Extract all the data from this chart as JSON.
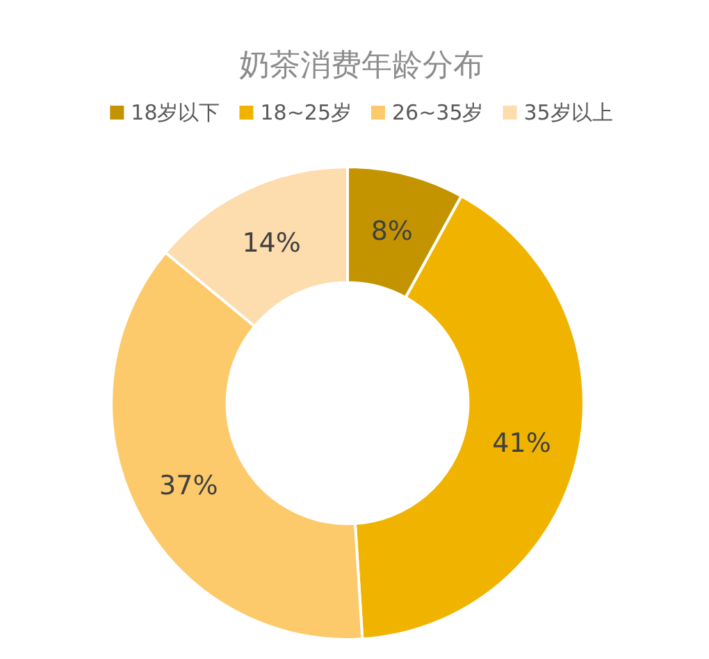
{
  "chart_data": {
    "type": "donut",
    "title": "奶茶消费年龄分布",
    "categories": [
      "18岁以下",
      "18~25岁",
      "26~35岁",
      "35岁以上"
    ],
    "values": [
      8,
      41,
      37,
      14
    ],
    "colors": [
      "#c49400",
      "#f0b400",
      "#fcc96b",
      "#fddcae"
    ],
    "value_labels": [
      "8%",
      "41%",
      "37%",
      "14%"
    ],
    "legend": "top"
  }
}
